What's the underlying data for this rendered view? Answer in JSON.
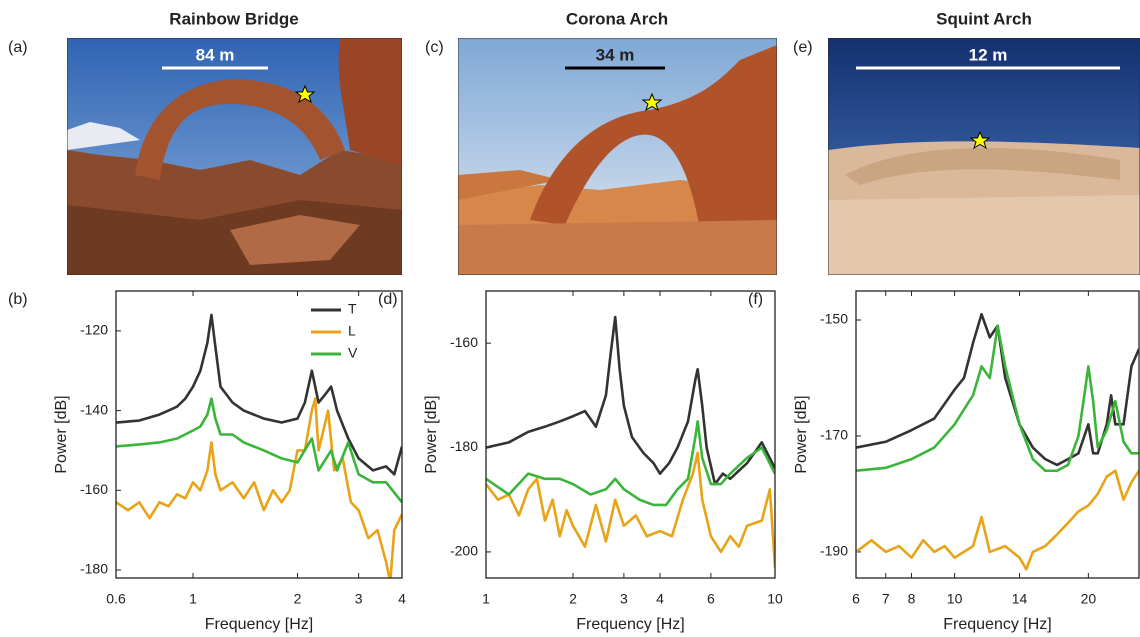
{
  "photos": [
    {
      "panel": "(a)",
      "scale_label": "84 m"
    },
    {
      "panel": "(c)",
      "scale_label": "34 m"
    },
    {
      "panel": "(e)",
      "scale_label": "12 m"
    }
  ],
  "chart_data": [
    {
      "type": "line",
      "title": "Rainbow Bridge",
      "panel": "(b)",
      "x_label": "Frequency [Hz]",
      "y_label": "Power [dB]",
      "log_x": true,
      "xlim": [
        0.6,
        4
      ],
      "xticks": [
        0.6,
        1,
        2,
        3,
        4
      ],
      "ylim": [
        -182,
        -110
      ],
      "yticks": [
        -180,
        -160,
        -140,
        -120
      ],
      "legend": "upper right",
      "series": [
        {
          "name": "T",
          "color": "#333333",
          "x": [
            0.6,
            0.7,
            0.8,
            0.85,
            0.9,
            0.95,
            1.0,
            1.05,
            1.1,
            1.13,
            1.16,
            1.2,
            1.3,
            1.4,
            1.6,
            1.8,
            2.0,
            2.1,
            2.2,
            2.3,
            2.4,
            2.5,
            2.6,
            2.8,
            3.0,
            3.3,
            3.6,
            3.8,
            4.0
          ],
          "values": [
            -143,
            -142.5,
            -141,
            -140,
            -139,
            -137,
            -134,
            -130,
            -123,
            -116,
            -124,
            -134,
            -138,
            -140,
            -142,
            -143,
            -142,
            -138,
            -130,
            -138,
            -136,
            -134,
            -140,
            -147,
            -152,
            -155,
            -154,
            -156,
            -149
          ]
        },
        {
          "name": "L",
          "color": "#e8a317",
          "x": [
            0.6,
            0.65,
            0.7,
            0.75,
            0.8,
            0.85,
            0.9,
            0.95,
            1.0,
            1.05,
            1.1,
            1.13,
            1.16,
            1.2,
            1.3,
            1.4,
            1.5,
            1.6,
            1.7,
            1.8,
            1.9,
            2.0,
            2.1,
            2.2,
            2.25,
            2.3,
            2.45,
            2.55,
            2.7,
            2.85,
            3.0,
            3.2,
            3.4,
            3.6,
            3.7,
            3.8,
            4.0
          ],
          "values": [
            -163,
            -165,
            -163,
            -167,
            -163,
            -164,
            -161,
            -162,
            -158,
            -160,
            -155,
            -148,
            -156,
            -160,
            -158,
            -162,
            -158,
            -165,
            -160,
            -163,
            -160,
            -150,
            -150,
            -140,
            -137,
            -150,
            -140,
            -155,
            -152,
            -163,
            -165,
            -172,
            -170,
            -178,
            -183,
            -170,
            -166
          ]
        },
        {
          "name": "V",
          "color": "#3ab53a",
          "x": [
            0.6,
            0.7,
            0.8,
            0.9,
            1.0,
            1.05,
            1.1,
            1.13,
            1.16,
            1.2,
            1.3,
            1.4,
            1.6,
            1.8,
            2.0,
            2.2,
            2.3,
            2.5,
            2.6,
            2.8,
            3.0,
            3.3,
            3.6,
            4.0
          ],
          "values": [
            -149,
            -148.5,
            -148,
            -147,
            -145,
            -144,
            -141,
            -137,
            -142,
            -146,
            -146,
            -148,
            -150,
            -152,
            -153,
            -147,
            -155,
            -150,
            -155,
            -148,
            -156,
            -158,
            -158,
            -163
          ]
        }
      ]
    },
    {
      "type": "line",
      "title": "Corona Arch",
      "panel": "(d)",
      "x_label": "Frequency [Hz]",
      "y_label": "Power [dB]",
      "log_x": true,
      "xlim": [
        1,
        10
      ],
      "xticks": [
        1,
        2,
        3,
        4,
        6,
        10
      ],
      "ylim": [
        -205,
        -150
      ],
      "yticks": [
        -200,
        -180,
        -160
      ],
      "series": [
        {
          "name": "T",
          "color": "#333333",
          "x": [
            1,
            1.2,
            1.4,
            1.6,
            1.8,
            2.0,
            2.2,
            2.4,
            2.6,
            2.7,
            2.8,
            2.9,
            3.0,
            3.2,
            3.5,
            3.8,
            4.0,
            4.3,
            4.6,
            5.0,
            5.3,
            5.4,
            5.6,
            5.8,
            6.2,
            6.6,
            7,
            8,
            9,
            10
          ],
          "values": [
            -180,
            -179,
            -177,
            -176,
            -175,
            -174,
            -173,
            -176,
            -170,
            -162,
            -155,
            -165,
            -172,
            -178,
            -181,
            -183,
            -185,
            -183,
            -180,
            -175,
            -167,
            -165,
            -172,
            -180,
            -187,
            -185,
            -186,
            -183,
            -179,
            -184
          ]
        },
        {
          "name": "L",
          "color": "#e8a317",
          "x": [
            1,
            1.1,
            1.2,
            1.3,
            1.4,
            1.5,
            1.6,
            1.7,
            1.8,
            1.9,
            2.0,
            2.2,
            2.4,
            2.6,
            2.8,
            3.0,
            3.3,
            3.6,
            4.0,
            4.4,
            4.8,
            5.2,
            5.4,
            5.6,
            6,
            6.5,
            7,
            7.5,
            8,
            9,
            9.6,
            10
          ],
          "values": [
            -187,
            -190,
            -189,
            -193,
            -188,
            -186,
            -194,
            -190,
            -197,
            -192,
            -195,
            -199,
            -191,
            -198,
            -190,
            -195,
            -193,
            -197,
            -196,
            -197,
            -190,
            -185,
            -181,
            -190,
            -197,
            -200,
            -197,
            -199,
            -195,
            -194,
            -188,
            -203
          ]
        },
        {
          "name": "V",
          "color": "#3ab53a",
          "x": [
            1,
            1.2,
            1.4,
            1.6,
            1.8,
            2.0,
            2.3,
            2.6,
            2.8,
            3.0,
            3.4,
            3.8,
            4.2,
            4.6,
            5.0,
            5.3,
            5.4,
            5.6,
            6,
            6.5,
            7,
            8,
            9,
            10
          ],
          "values": [
            -186,
            -189,
            -185,
            -186,
            -186,
            -187,
            -189,
            -188,
            -186,
            -188,
            -190,
            -191,
            -191,
            -188,
            -186,
            -178,
            -175,
            -182,
            -187,
            -187,
            -185,
            -182,
            -180,
            -185
          ]
        }
      ]
    },
    {
      "type": "line",
      "title": "Squint Arch",
      "panel": "(f)",
      "x_label": "Frequency [Hz]",
      "y_label": "Power [dB]",
      "log_x": true,
      "xlim": [
        6,
        26
      ],
      "xticks": [
        6,
        7,
        8,
        10,
        14,
        20
      ],
      "ylim": [
        -194.5,
        -145
      ],
      "yticks": [
        -190,
        -170,
        -150
      ],
      "series": [
        {
          "name": "T",
          "color": "#333333",
          "x": [
            6,
            7,
            8,
            9,
            10,
            10.5,
            11,
            11.5,
            12,
            12.5,
            13,
            14,
            15,
            16,
            17,
            18,
            19,
            20,
            20.5,
            21,
            22,
            22.5,
            23,
            24,
            25,
            26
          ],
          "values": [
            -172,
            -171,
            -169,
            -167,
            -162,
            -160,
            -154,
            -149,
            -153,
            -151,
            -160,
            -168,
            -172,
            -174,
            -175,
            -174,
            -173,
            -168,
            -173,
            -173,
            -168,
            -163,
            -168,
            -168,
            -158,
            -155
          ]
        },
        {
          "name": "L",
          "color": "#e8a317",
          "x": [
            6,
            6.5,
            7,
            7.5,
            8,
            8.5,
            9,
            9.5,
            10,
            11,
            11.5,
            12,
            13,
            14,
            14.5,
            15,
            16,
            17,
            18,
            19,
            20,
            21,
            22,
            23,
            24,
            25,
            26
          ],
          "values": [
            -190,
            -188,
            -190,
            -189,
            -191,
            -188,
            -190,
            -189,
            -191,
            -189,
            -184,
            -190,
            -189,
            -191,
            -193,
            -190,
            -189,
            -187,
            -185,
            -183,
            -182,
            -180,
            -177,
            -176,
            -181,
            -178,
            -176
          ]
        },
        {
          "name": "V",
          "color": "#3ab53a",
          "x": [
            6,
            7,
            8,
            9,
            10,
            11,
            11.5,
            12,
            12.5,
            13,
            14,
            15,
            16,
            17,
            18,
            19,
            19.5,
            20,
            20.5,
            21,
            22,
            23,
            24,
            25,
            26
          ],
          "values": [
            -176,
            -175.5,
            -174,
            -172,
            -168,
            -163,
            -158,
            -160,
            -151,
            -158,
            -168,
            -174,
            -176,
            -176,
            -175,
            -170,
            -164,
            -158,
            -164,
            -172,
            -169,
            -164,
            -171,
            -173,
            -173
          ]
        }
      ]
    }
  ]
}
